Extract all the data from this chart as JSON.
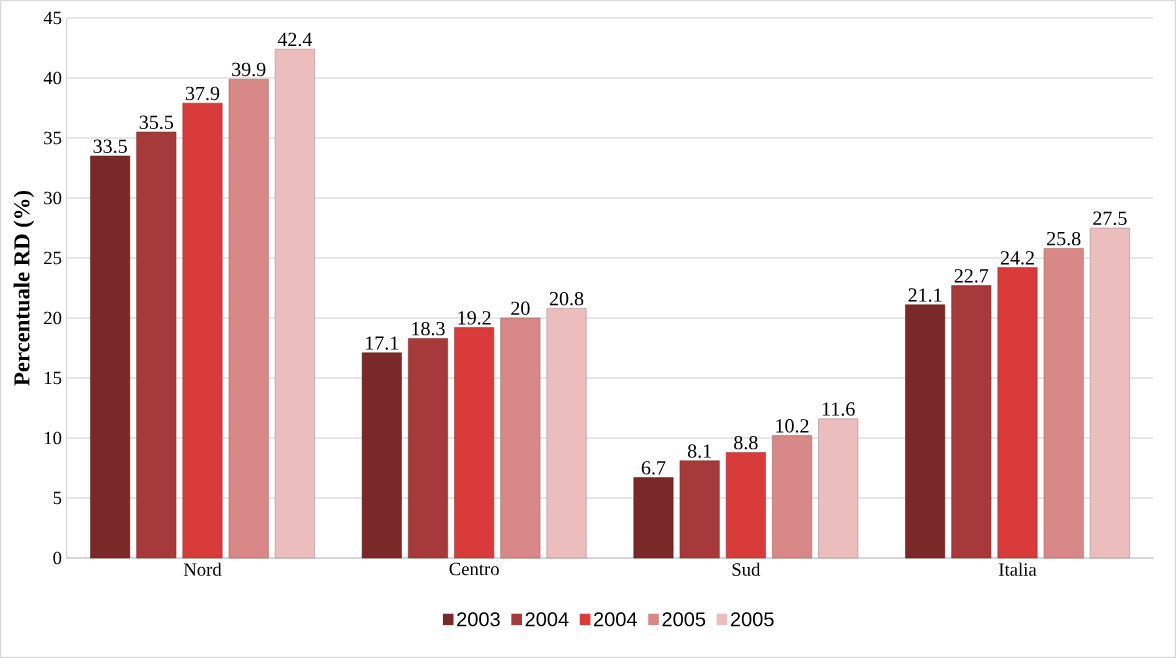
{
  "chart_data": {
    "type": "bar",
    "ylabel": "Percentuale RD (%)",
    "categories": [
      "Nord",
      "Centro",
      "Sud",
      "Italia"
    ],
    "series": [
      {
        "name": "2003",
        "color": "#7a2828",
        "values": [
          33.5,
          17.1,
          6.7,
          21.1
        ]
      },
      {
        "name": "2004",
        "color": "#a63a3a",
        "values": [
          35.5,
          18.3,
          8.1,
          22.7
        ]
      },
      {
        "name": "2004",
        "color": "#d93b3b",
        "values": [
          37.9,
          19.2,
          8.8,
          24.2
        ]
      },
      {
        "name": "2005",
        "color": "#d98888",
        "values": [
          39.9,
          20,
          10.2,
          25.8
        ]
      },
      {
        "name": "2005",
        "color": "#ebbdbd",
        "values": [
          42.4,
          20.8,
          11.6,
          27.5
        ]
      }
    ],
    "ylim": [
      0,
      45
    ],
    "yticks": [
      0,
      5,
      10,
      15,
      20,
      25,
      30,
      35,
      40,
      45
    ],
    "grid": "y",
    "legend": "bottom",
    "data_labels": true
  }
}
